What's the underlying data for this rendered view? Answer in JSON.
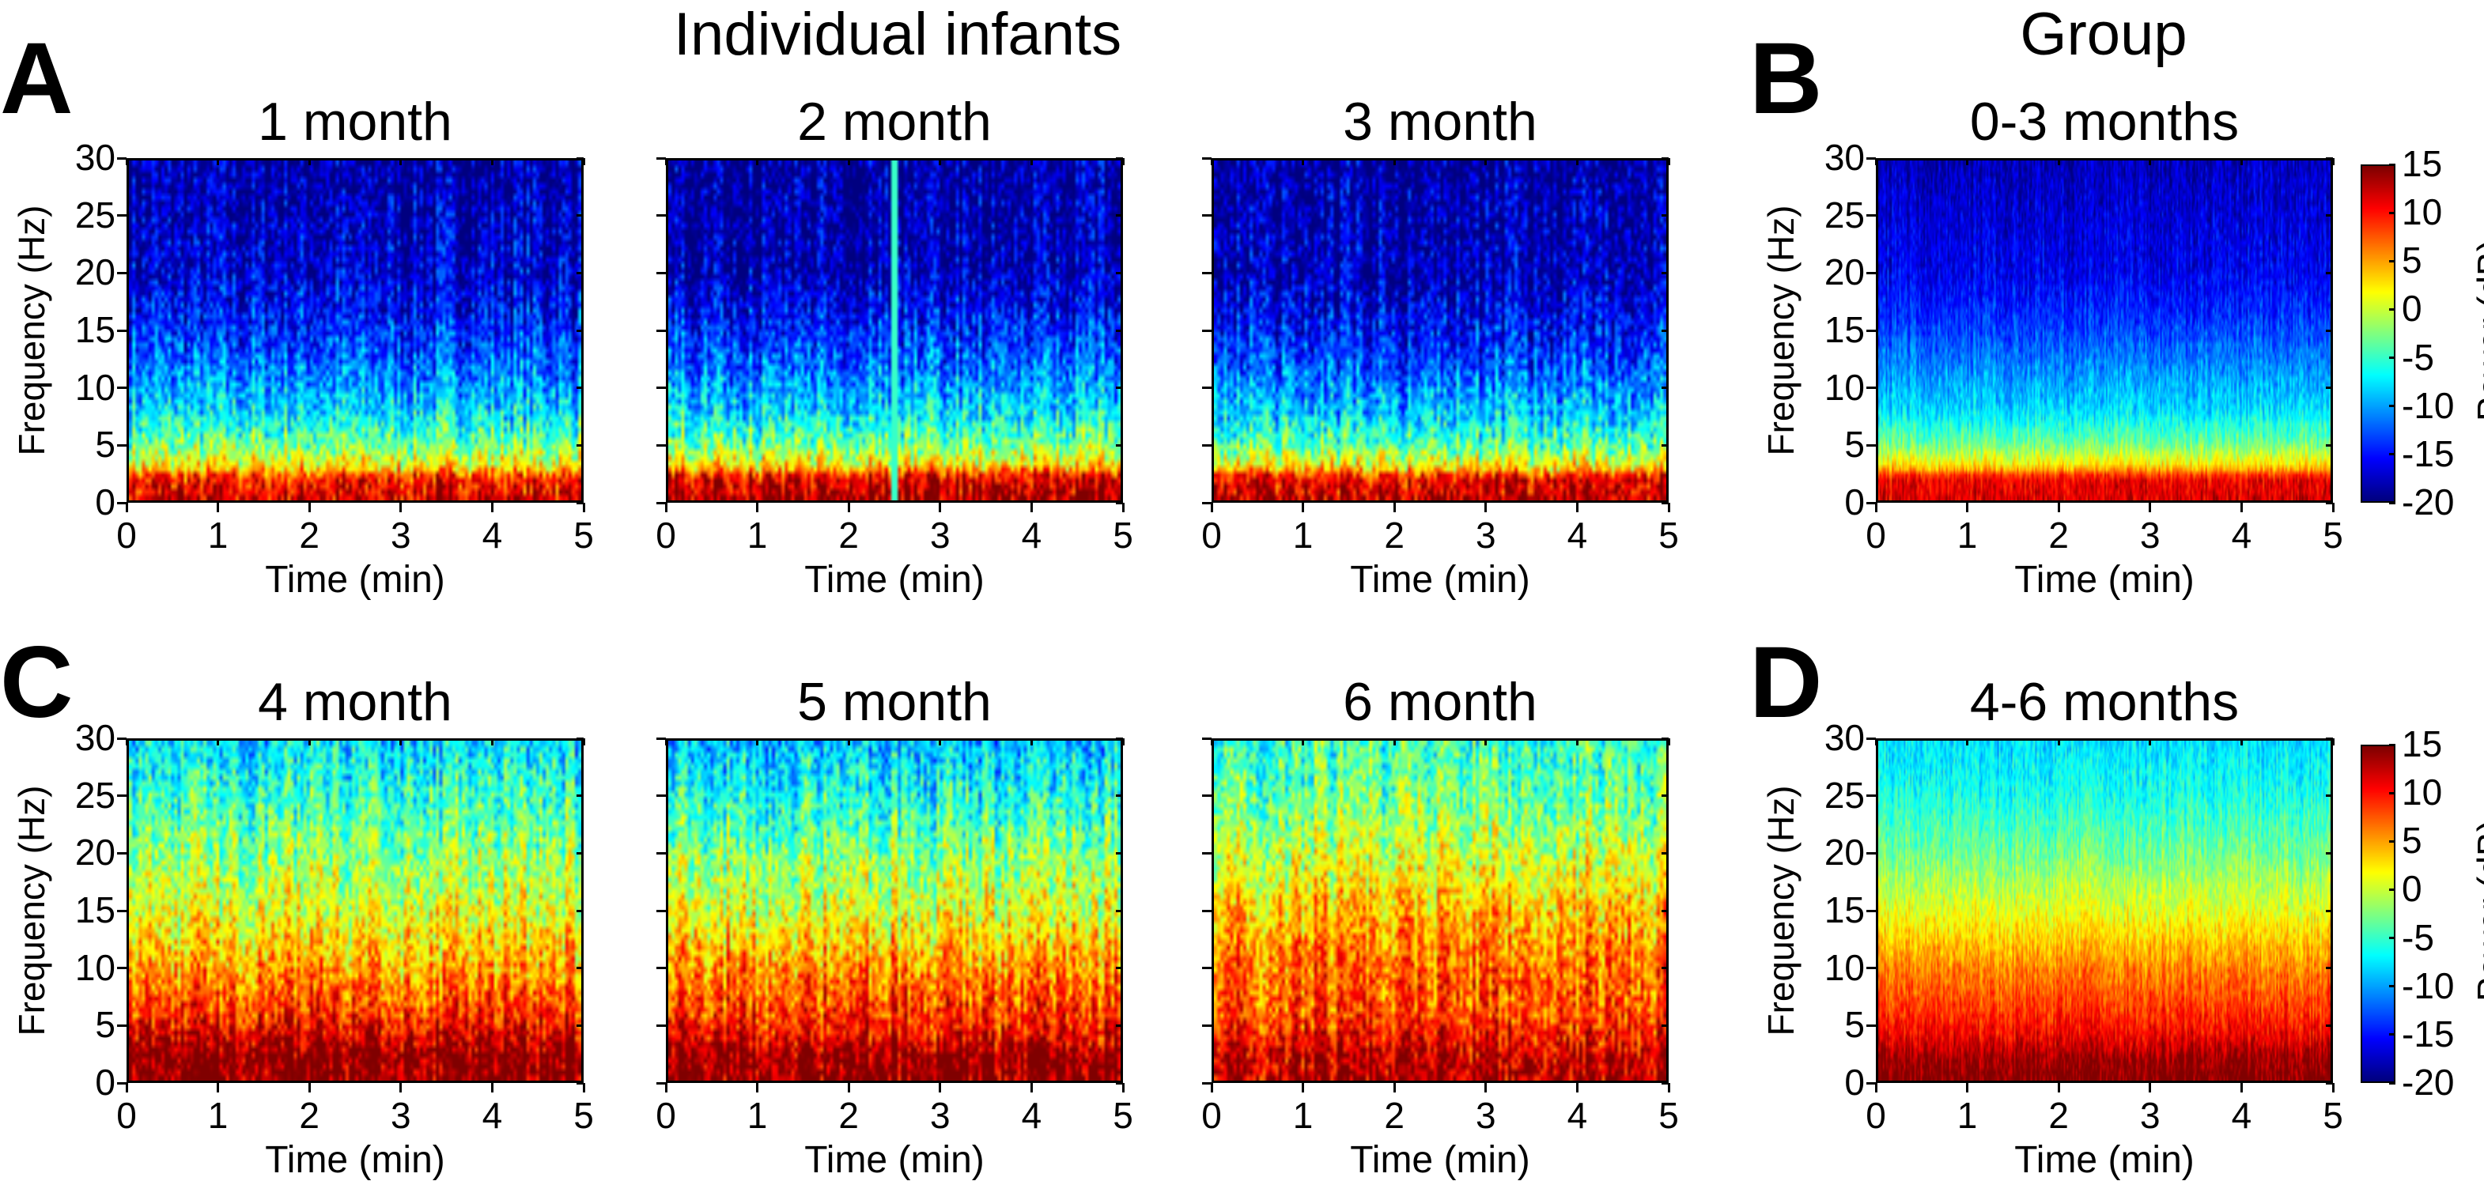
{
  "headings": {
    "individual": "Individual infants",
    "group": "Group"
  },
  "panel_letters": [
    "A",
    "B",
    "C",
    "D"
  ],
  "colormap": "jet",
  "colorbar": {
    "label": "Power (dB)",
    "range": [
      -20,
      15
    ],
    "ticks": [
      "15",
      "10",
      "5",
      "0",
      "-5",
      "-10",
      "-15",
      "-20"
    ],
    "tick_values": [
      15,
      10,
      5,
      0,
      -5,
      -10,
      -15,
      -20
    ]
  },
  "chart_data": [
    {
      "type": "heatmap",
      "title": "1 month",
      "xlabel": "Time (min)",
      "ylabel": "Frequency (Hz)",
      "xlim": [
        0,
        5
      ],
      "ylim": [
        0,
        30
      ],
      "xticks": [
        "0",
        "1",
        "2",
        "3",
        "4",
        "5"
      ],
      "yticks": [
        "0",
        "5",
        "10",
        "15",
        "20",
        "25",
        "30"
      ],
      "show_ytick_labels": true,
      "colorbar": false,
      "frequency_hz": [
        0,
        2,
        3,
        5,
        8,
        12,
        16,
        20,
        30
      ],
      "mean_power_db": [
        12,
        10,
        2,
        -3,
        -8,
        -12,
        -15,
        -17,
        -19
      ]
    },
    {
      "type": "heatmap",
      "title": "2 month",
      "xlabel": "Time (min)",
      "ylabel": "",
      "xlim": [
        0,
        5
      ],
      "ylim": [
        0,
        30
      ],
      "xticks": [
        "0",
        "1",
        "2",
        "3",
        "4",
        "5"
      ],
      "yticks": [],
      "show_ytick_labels": false,
      "colorbar": false,
      "frequency_hz": [
        0,
        2,
        3,
        5,
        8,
        12,
        16,
        20,
        30
      ],
      "mean_power_db": [
        14,
        12,
        3,
        -3,
        -8,
        -12,
        -15,
        -18,
        -19
      ],
      "artifact": {
        "time_min": 2.5,
        "power_db": -5
      }
    },
    {
      "type": "heatmap",
      "title": "3 month",
      "xlabel": "Time (min)",
      "ylabel": "",
      "xlim": [
        0,
        5
      ],
      "ylim": [
        0,
        30
      ],
      "xticks": [
        "0",
        "1",
        "2",
        "3",
        "4",
        "5"
      ],
      "yticks": [],
      "show_ytick_labels": false,
      "colorbar": false,
      "frequency_hz": [
        0,
        2,
        3,
        5,
        8,
        12,
        16,
        20,
        30
      ],
      "mean_power_db": [
        13,
        11,
        2,
        -4,
        -9,
        -13,
        -16,
        -18,
        -19
      ]
    },
    {
      "type": "heatmap",
      "title": "0-3 months",
      "xlabel": "Time (min)",
      "ylabel": "Frequency (Hz)",
      "xlim": [
        0,
        5
      ],
      "ylim": [
        0,
        30
      ],
      "xticks": [
        "0",
        "1",
        "2",
        "3",
        "4",
        "5"
      ],
      "yticks": [
        "0",
        "5",
        "10",
        "15",
        "20",
        "25",
        "30"
      ],
      "show_ytick_labels": true,
      "colorbar": true,
      "frequency_hz": [
        0,
        2,
        3,
        5,
        8,
        12,
        16,
        20,
        30
      ],
      "mean_power_db": [
        12,
        11,
        3,
        -3,
        -8,
        -11,
        -14,
        -16,
        -18
      ]
    },
    {
      "type": "heatmap",
      "title": "4 month",
      "xlabel": "Time (min)",
      "ylabel": "Frequency (Hz)",
      "xlim": [
        0,
        5
      ],
      "ylim": [
        0,
        30
      ],
      "xticks": [
        "0",
        "1",
        "2",
        "3",
        "4",
        "5"
      ],
      "yticks": [
        "0",
        "5",
        "10",
        "15",
        "20",
        "25",
        "30"
      ],
      "show_ytick_labels": true,
      "colorbar": false,
      "frequency_hz": [
        0,
        2,
        4,
        6,
        10,
        15,
        20,
        25,
        30
      ],
      "mean_power_db": [
        15,
        15,
        12,
        9,
        5,
        1,
        -2,
        -5,
        -8
      ]
    },
    {
      "type": "heatmap",
      "title": "5 month",
      "xlabel": "Time (min)",
      "ylabel": "",
      "xlim": [
        0,
        5
      ],
      "ylim": [
        0,
        30
      ],
      "xticks": [
        "0",
        "1",
        "2",
        "3",
        "4",
        "5"
      ],
      "yticks": [],
      "show_ytick_labels": false,
      "colorbar": false,
      "frequency_hz": [
        0,
        2,
        4,
        6,
        10,
        15,
        20,
        25,
        30
      ],
      "mean_power_db": [
        15,
        15,
        11,
        9,
        6,
        1,
        -2,
        -6,
        -9
      ]
    },
    {
      "type": "heatmap",
      "title": "6 month",
      "xlabel": "Time (min)",
      "ylabel": "",
      "xlim": [
        0,
        5
      ],
      "ylim": [
        0,
        30
      ],
      "xticks": [
        "0",
        "1",
        "2",
        "3",
        "4",
        "5"
      ],
      "yticks": [],
      "show_ytick_labels": false,
      "colorbar": false,
      "frequency_hz": [
        0,
        2,
        4,
        6,
        10,
        15,
        20,
        25,
        30
      ],
      "mean_power_db": [
        13,
        13,
        10,
        8,
        7,
        4,
        0,
        -3,
        -5
      ]
    },
    {
      "type": "heatmap",
      "title": "4-6 months",
      "xlabel": "Time (min)",
      "ylabel": "Frequency (Hz)",
      "xlim": [
        0,
        5
      ],
      "ylim": [
        0,
        30
      ],
      "xticks": [
        "0",
        "1",
        "2",
        "3",
        "4",
        "5"
      ],
      "yticks": [
        "0",
        "5",
        "10",
        "15",
        "20",
        "25",
        "30"
      ],
      "show_ytick_labels": true,
      "colorbar": true,
      "frequency_hz": [
        0,
        2,
        4,
        6,
        10,
        15,
        20,
        25,
        30
      ],
      "mean_power_db": [
        15,
        14,
        11,
        9,
        6,
        1,
        -3,
        -6,
        -8
      ]
    }
  ]
}
